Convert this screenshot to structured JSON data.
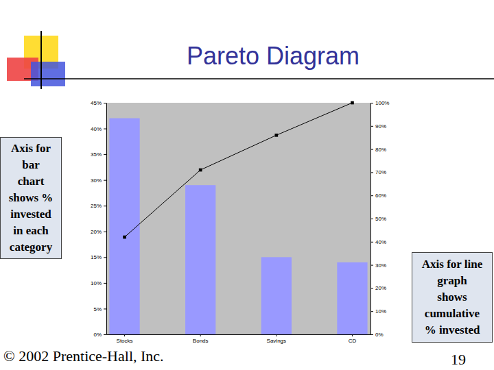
{
  "chart_data": {
    "type": "bar",
    "title": "Pareto Diagram",
    "categories": [
      "Stocks",
      "Bonds",
      "Savings",
      "CD"
    ],
    "series": [
      {
        "type": "bar",
        "color": "#9999ff",
        "values": [
          42,
          29,
          15,
          14
        ]
      },
      {
        "type": "line",
        "color": "#000000",
        "marker": "square",
        "line_style": "solid",
        "axis": "y2",
        "values": [
          42,
          71,
          86,
          100
        ]
      }
    ],
    "ylim": [
      0,
      45
    ],
    "yticks": [
      {
        "value": 0,
        "label": "0%"
      },
      {
        "value": 5,
        "label": "5%"
      },
      {
        "value": 10,
        "label": "10%"
      },
      {
        "value": 15,
        "label": "15%"
      },
      {
        "value": 20,
        "label": "20%"
      },
      {
        "value": 25,
        "label": "25%"
      },
      {
        "value": 30,
        "label": "30%"
      },
      {
        "value": 35,
        "label": "35%"
      },
      {
        "value": 40,
        "label": "40%"
      },
      {
        "value": 45,
        "label": "45%"
      }
    ],
    "y2lim": [
      0,
      100
    ],
    "y2ticks": [
      {
        "value": 0,
        "label": "0%"
      },
      {
        "value": 10,
        "label": "10%"
      },
      {
        "value": 20,
        "label": "20%"
      },
      {
        "value": 30,
        "label": "30%"
      },
      {
        "value": 40,
        "label": "40%"
      },
      {
        "value": 50,
        "label": "50%"
      },
      {
        "value": 60,
        "label": "60%"
      },
      {
        "value": 70,
        "label": "70%"
      },
      {
        "value": 80,
        "label": "80%"
      },
      {
        "value": 90,
        "label": "90%"
      },
      {
        "value": 100,
        "label": "100%"
      }
    ],
    "grid": false,
    "annotations": [
      [
        "Axis for",
        "bar",
        "chart",
        "shows %",
        "invested",
        "in each",
        "category"
      ],
      [
        "Axis for line",
        "graph",
        "shows",
        "cumulative",
        "% invested"
      ]
    ]
  },
  "slide": {
    "copyright": "© 2002 Prentice-Hall, Inc.",
    "page": 19
  }
}
